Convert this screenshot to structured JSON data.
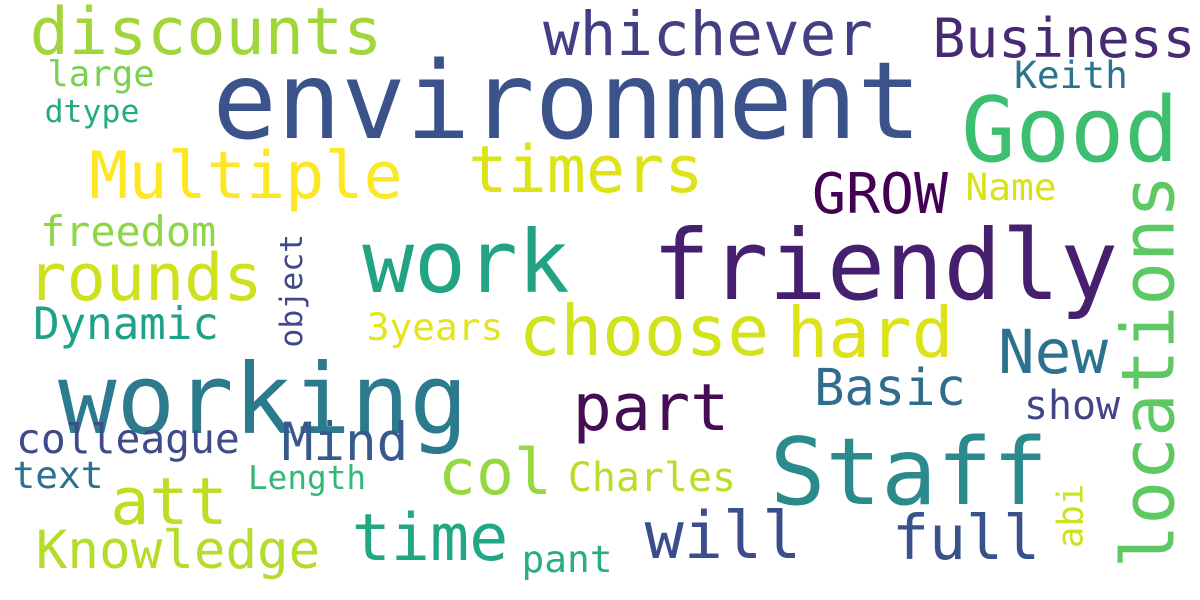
{
  "words": [
    {
      "text": "environment",
      "color": "#3b528b"
    },
    {
      "text": "friendly",
      "color": "#46206e"
    },
    {
      "text": "working",
      "color": "#2b7a8d"
    },
    {
      "text": "Staff",
      "color": "#2a8a8c"
    },
    {
      "text": "work",
      "color": "#22a384"
    },
    {
      "text": "Good",
      "color": "#3dbf6f"
    },
    {
      "text": "discounts",
      "color": "#a0d63a"
    },
    {
      "text": "whichever",
      "color": "#433f84"
    },
    {
      "text": "Business",
      "color": "#482a71"
    },
    {
      "text": "Multiple",
      "color": "#fde725"
    },
    {
      "text": "timers",
      "color": "#dde318"
    },
    {
      "text": "rounds",
      "color": "#cfe11c"
    },
    {
      "text": "choose",
      "color": "#d2e21b"
    },
    {
      "text": "hard",
      "color": "#dde318"
    },
    {
      "text": "part",
      "color": "#450d54"
    },
    {
      "text": "will",
      "color": "#3b4e8b"
    },
    {
      "text": "full",
      "color": "#3a528b"
    },
    {
      "text": "time",
      "color": "#22a785"
    },
    {
      "text": "att",
      "color": "#bfdd24"
    },
    {
      "text": "col",
      "color": "#95d840"
    },
    {
      "text": "Mind",
      "color": "#37598c"
    },
    {
      "text": "New",
      "color": "#2c728e"
    },
    {
      "text": "Basic",
      "color": "#2f6c8e"
    },
    {
      "text": "GROW",
      "color": "#440154"
    },
    {
      "text": "Knowledge",
      "color": "#b3dc2b"
    },
    {
      "text": "Dynamic",
      "color": "#1fa187"
    },
    {
      "text": "locations",
      "color": "#5ec962"
    },
    {
      "text": "large",
      "color": "#7ad151"
    },
    {
      "text": "Keith",
      "color": "#2c738e"
    },
    {
      "text": "dtype",
      "color": "#25ab82"
    },
    {
      "text": "freedom",
      "color": "#8ed645"
    },
    {
      "text": "Name",
      "color": "#d8e219"
    },
    {
      "text": "3years",
      "color": "#e5e419"
    },
    {
      "text": "object",
      "color": "#3f4889"
    },
    {
      "text": "colleague",
      "color": "#3e4a89"
    },
    {
      "text": "text",
      "color": "#2c728e"
    },
    {
      "text": "Length",
      "color": "#35b779"
    },
    {
      "text": "Charles",
      "color": "#b8de29"
    },
    {
      "text": "show",
      "color": "#404588"
    },
    {
      "text": "abi",
      "color": "#cde11d"
    },
    {
      "text": "pant",
      "color": "#29af7f"
    }
  ]
}
